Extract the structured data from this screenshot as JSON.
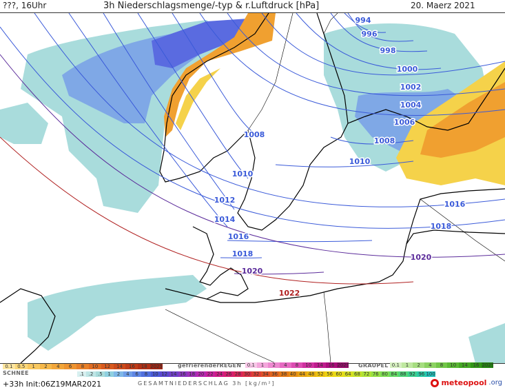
{
  "header": {
    "left": "???, 16Uhr",
    "title": "3h Niederschlagsmenge/-typ & r.Luftdruck [hPa]",
    "date": "20. Maerz 2021"
  },
  "map": {
    "isobars": [
      {
        "label": "994",
        "color": "#3a5ad9"
      },
      {
        "label": "996",
        "color": "#3a5ad9"
      },
      {
        "label": "998",
        "color": "#3a5ad9"
      },
      {
        "label": "1000",
        "color": "#3a5ad9"
      },
      {
        "label": "1002",
        "color": "#3a5ad9"
      },
      {
        "label": "1004",
        "color": "#3a5ad9"
      },
      {
        "label": "1006",
        "color": "#3a5ad9"
      },
      {
        "label": "1008",
        "color": "#3a5ad9"
      },
      {
        "label": "1008",
        "color": "#3a5ad9"
      },
      {
        "label": "1010",
        "color": "#3a5ad9"
      },
      {
        "label": "1010",
        "color": "#3a5ad9"
      },
      {
        "label": "1012",
        "color": "#3a5ad9"
      },
      {
        "label": "1014",
        "color": "#3a5ad9"
      },
      {
        "label": "1016",
        "color": "#3a5ad9"
      },
      {
        "label": "1016",
        "color": "#3a5ad9"
      },
      {
        "label": "1018",
        "color": "#3a5ad9"
      },
      {
        "label": "1018",
        "color": "#3a5ad9"
      },
      {
        "label": "1020",
        "color": "#5a2a9a"
      },
      {
        "label": "1020",
        "color": "#5a2a9a"
      },
      {
        "label": "1022",
        "color": "#b02020"
      }
    ],
    "colors": {
      "low_pressure_line": "#3a5ad9",
      "high_pressure_line": "#b03030",
      "rain_light": "#a9dcdc",
      "rain_medium": "#7fa8e6",
      "rain_heavy": "#5a6be0",
      "snow_orange": "#f0a030",
      "snow_yellow": "#f5d24a",
      "coastline": "#000000"
    }
  },
  "legend": {
    "snow_title": "SCHNEE",
    "freezing_title": "gefrierenderREGEN",
    "graupel_title": "GRAUPEL",
    "rain_steps": [
      ".1",
      ".2",
      ".5",
      "1",
      "2",
      "4",
      "6",
      "8",
      "10",
      "12",
      "14",
      "16",
      "18",
      "20",
      "22",
      "24",
      "26",
      "28",
      "30",
      "32",
      "34",
      "36",
      "38",
      "40",
      "44",
      "48",
      "52",
      "56",
      "60",
      "64",
      "68",
      "72",
      "76",
      "80",
      "84",
      "88",
      "92",
      "96",
      "100"
    ],
    "snow_steps": [
      "0.1",
      "0.5",
      "1",
      "2",
      "4",
      "6",
      "8",
      "10",
      "12",
      "14",
      "16",
      "18",
      "2025+"
    ],
    "freezing_steps": [
      "0.1",
      "1",
      "2",
      "4",
      "8",
      "10",
      "14",
      "16",
      "2025+"
    ],
    "graupel_steps": [
      "0.1",
      "1",
      "2",
      "4",
      "8",
      "10",
      "14",
      "16",
      "2025+"
    ],
    "sum_label": "GESAMTNIEDERSCHLAG 3h [kg/m²]"
  },
  "footer": {
    "run_info": "+33h Init:06Z19MAR2021",
    "logo_main": "meteopool",
    "logo_tail": ".org"
  }
}
